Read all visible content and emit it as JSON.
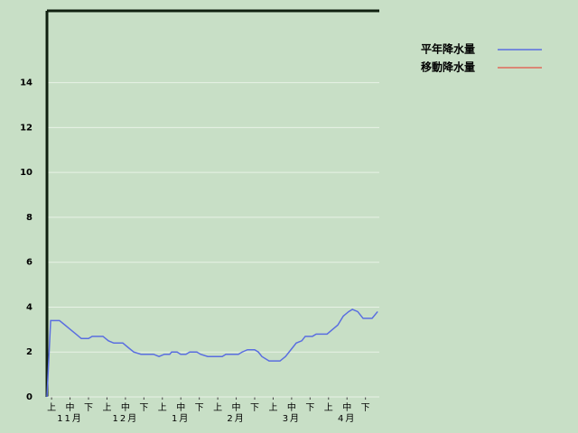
{
  "chart_data": {
    "type": "line",
    "x": [
      -0.25,
      -0.05,
      0.43,
      0.73,
      1.02,
      1.32,
      1.61,
      2.0,
      2.2,
      2.78,
      3.08,
      3.37,
      3.86,
      4.15,
      4.45,
      4.84,
      5.52,
      5.82,
      6.11,
      6.4,
      6.5,
      6.8,
      6.99,
      7.28,
      7.48,
      7.87,
      8.07,
      8.46,
      9.24,
      9.44,
      10.12,
      10.32,
      10.61,
      11.0,
      11.2,
      11.39,
      11.78,
      12.37,
      12.67,
      12.96,
      13.25,
      13.55,
      13.74,
      14.13,
      14.33,
      14.92,
      15.21,
      15.5,
      15.8,
      16.09,
      16.29,
      16.58,
      16.87,
      17.36,
      17.66
    ],
    "series": [
      {
        "name": "平年降水量",
        "color": "#5a6ee0",
        "values": [
          0,
          3.4,
          3.4,
          3.2,
          3.0,
          2.8,
          2.6,
          2.6,
          2.7,
          2.7,
          2.5,
          2.4,
          2.4,
          2.2,
          2.0,
          1.9,
          1.9,
          1.8,
          1.9,
          1.9,
          2.0,
          2.0,
          1.9,
          1.9,
          2.0,
          2.0,
          1.9,
          1.8,
          1.8,
          1.9,
          1.9,
          2.0,
          2.1,
          2.1,
          2.0,
          1.8,
          1.6,
          1.6,
          1.8,
          2.1,
          2.4,
          2.5,
          2.7,
          2.7,
          2.8,
          2.8,
          3.0,
          3.2,
          3.6,
          3.8,
          3.9,
          3.8,
          3.5,
          3.5,
          3.8
        ]
      },
      {
        "name": "移動降水量",
        "color": "#e06a5a",
        "values": [
          null,
          null,
          null,
          null,
          null,
          null,
          null,
          null,
          null,
          null,
          null,
          null,
          null,
          null,
          null,
          null,
          null,
          null,
          null,
          null,
          null,
          null,
          null,
          null,
          null,
          null,
          null,
          null,
          null,
          null,
          null,
          null,
          null,
          null,
          null,
          null,
          null,
          null,
          null,
          null,
          null,
          null,
          null,
          null,
          null,
          null,
          null,
          null,
          null,
          null,
          null,
          null,
          null,
          null,
          null
        ]
      }
    ],
    "xlim": [
      -0.25,
      17.75
    ],
    "xticks": [
      {
        "value": 0,
        "label": "上"
      },
      {
        "value": 1,
        "label": "中"
      },
      {
        "value": 2,
        "label": "下"
      },
      {
        "value": 3,
        "label": "上"
      },
      {
        "value": 4,
        "label": "中"
      },
      {
        "value": 5,
        "label": "下"
      },
      {
        "value": 6,
        "label": "上"
      },
      {
        "value": 7,
        "label": "中"
      },
      {
        "value": 8,
        "label": "下"
      },
      {
        "value": 9,
        "label": "上"
      },
      {
        "value": 10,
        "label": "中"
      },
      {
        "value": 11,
        "label": "下"
      },
      {
        "value": 12,
        "label": "上"
      },
      {
        "value": 13,
        "label": "中"
      },
      {
        "value": 14,
        "label": "下"
      },
      {
        "value": 15,
        "label": "上"
      },
      {
        "value": 16,
        "label": "中"
      },
      {
        "value": 17,
        "label": "下"
      }
    ],
    "months": [
      {
        "value": 1,
        "label": "11月"
      },
      {
        "value": 4,
        "label": "12月"
      },
      {
        "value": 7,
        "label": "1月"
      },
      {
        "value": 10,
        "label": "2月"
      },
      {
        "value": 13,
        "label": "3月"
      },
      {
        "value": 16,
        "label": "4月"
      }
    ],
    "ylim": [
      0,
      17.2
    ],
    "yticks": [
      0,
      2,
      4,
      6,
      8,
      10,
      12,
      14
    ],
    "grid": true,
    "legend": "right"
  }
}
